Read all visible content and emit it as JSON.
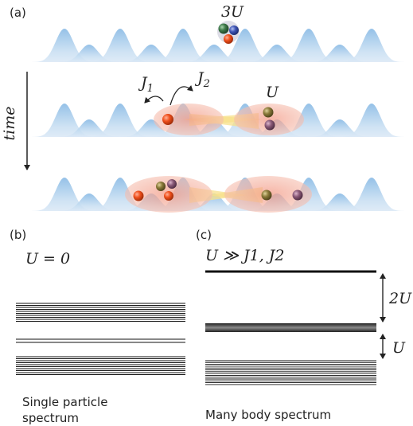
{
  "panel_a": {
    "label": "(a)",
    "time_label": "time",
    "row1": {
      "interaction_label": "3U"
    },
    "row2": {
      "hop1_label": "J1",
      "hop2_label": "J2",
      "interaction_label": "U"
    }
  },
  "panel_b": {
    "label": "(b)",
    "condition": "U = 0",
    "caption_line1": "Single particle",
    "caption_line2": "spectrum"
  },
  "panel_c": {
    "label": "(c)",
    "condition": "U ≫ J1, J2",
    "gap_upper_label": "2U",
    "gap_lower_label": "U",
    "caption": "Many body spectrum"
  },
  "colors": {
    "lattice": "#a9cdea",
    "ellipse": "#f2b3a0",
    "link": "#f7e08a",
    "particle_red": "#e8481c",
    "particle_green": "#3e7a4a",
    "particle_blue": "#3e55b5",
    "particle_olive": "#8a7a3a",
    "particle_mauve": "#8a5a78"
  }
}
